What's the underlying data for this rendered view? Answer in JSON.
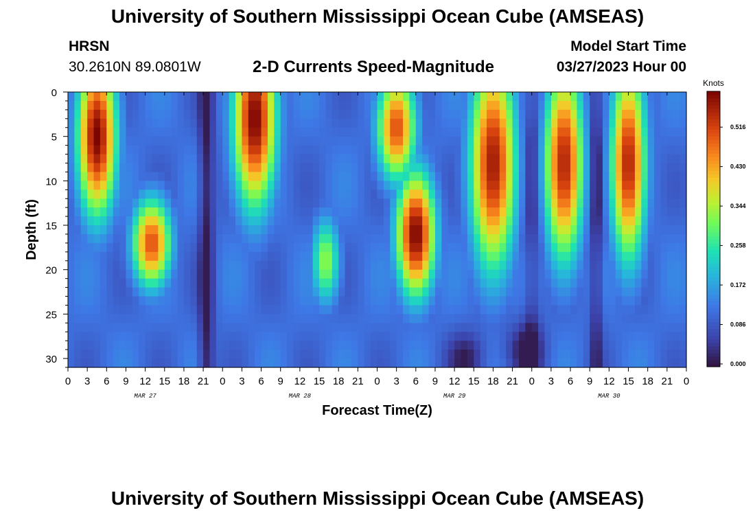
{
  "header": {
    "title": "University of Southern Mississippi Ocean Cube (AMSEAS)",
    "station": "HRSN",
    "coords": "30.2610N  89.0801W",
    "plot_title": "2-D Currents Speed-Magnitude",
    "model_start_label": "Model Start Time",
    "model_start_value": "03/27/2023 Hour 00"
  },
  "footer": {
    "title": "University of Southern Mississippi Ocean Cube (AMSEAS)"
  },
  "chart_data": {
    "type": "heatmap",
    "title": "2-D Currents Speed-Magnitude",
    "xlabel": "Forecast Time(Z)",
    "ylabel": "Depth (ft)",
    "xlim": [
      0,
      96
    ],
    "ylim": [
      0,
      31
    ],
    "y_reversed": true,
    "x_tick_labels": [
      "0",
      "3",
      "6",
      "9",
      "12",
      "15",
      "18",
      "21",
      "0",
      "3",
      "6",
      "9",
      "12",
      "15",
      "18",
      "21",
      "0",
      "3",
      "6",
      "9",
      "12",
      "15",
      "18",
      "21",
      "0",
      "3",
      "6",
      "9",
      "12",
      "15",
      "18",
      "21",
      "0"
    ],
    "y_ticks": [
      0,
      5,
      10,
      15,
      20,
      25,
      30
    ],
    "date_labels": [
      {
        "label": "MAR 27",
        "hour": 12
      },
      {
        "label": "MAR 28",
        "hour": 36
      },
      {
        "label": "MAR 29",
        "hour": 60
      },
      {
        "label": "MAR 30",
        "hour": 84
      }
    ],
    "colorbar": {
      "title": "Knots",
      "min": 0.0,
      "max": 0.6,
      "ticks": [
        0.0,
        0.086,
        0.172,
        0.258,
        0.344,
        0.43,
        0.516
      ],
      "tick_labels": [
        "0.000",
        "0.086",
        "0.172",
        "0.258",
        "0.344",
        "0.430",
        "0.516"
      ]
    },
    "speed_maxima": [
      {
        "hour": 4.5,
        "depth": 5,
        "knots": 0.58
      },
      {
        "hour": 13,
        "depth": 17,
        "knots": 0.5
      },
      {
        "hour": 29,
        "depth": 3,
        "knots": 0.58
      },
      {
        "hour": 40,
        "depth": 19,
        "knots": 0.33
      },
      {
        "hour": 54,
        "depth": 16,
        "knots": 0.58
      },
      {
        "hour": 66,
        "depth": 8,
        "knots": 0.56
      },
      {
        "hour": 77,
        "depth": 8,
        "knots": 0.55
      },
      {
        "hour": 87,
        "depth": 8,
        "knots": 0.55
      }
    ]
  }
}
